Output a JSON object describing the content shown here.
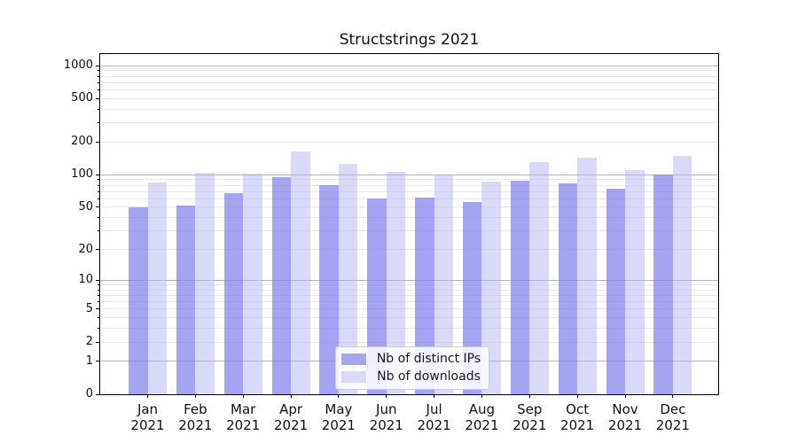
{
  "chart_data": {
    "type": "bar",
    "title": "Structstrings 2021",
    "categories": [
      "Jan",
      "Feb",
      "Mar",
      "Apr",
      "May",
      "Jun",
      "Jul",
      "Aug",
      "Sep",
      "Oct",
      "Nov",
      "Dec"
    ],
    "category_year": "2021",
    "series": [
      {
        "id": "distinct-ips",
        "name": "Nb of distinct IPs",
        "values": [
          50,
          52,
          68,
          95,
          80,
          61,
          62,
          56,
          89,
          83,
          75,
          100
        ],
        "fill": "rgba(126,126,235,0.7)",
        "legend_fill": "#a5a5f1"
      },
      {
        "id": "downloads",
        "name": "Nb of downloads",
        "values": [
          85,
          105,
          103,
          163,
          127,
          106,
          100,
          87,
          132,
          144,
          110,
          148
        ],
        "fill": "rgba(179,179,241,0.5)",
        "legend_fill": "#d9d9f8"
      }
    ],
    "yscale": "log1p",
    "ylim": [
      0,
      1280
    ],
    "yticks": [
      0,
      1,
      2,
      5,
      10,
      20,
      50,
      100,
      200,
      500,
      1000
    ],
    "grid": {
      "major": [
        1,
        10,
        100,
        1000
      ],
      "minor": [
        2,
        3,
        4,
        5,
        6,
        7,
        8,
        9,
        20,
        30,
        40,
        50,
        60,
        70,
        80,
        90,
        200,
        300,
        400,
        500,
        600,
        700,
        800,
        900
      ]
    },
    "colors": {
      "grid_major": "#b3b3b3",
      "grid_minor": "#e8e8e8",
      "axis": "#000000"
    },
    "legend_position": "lower center",
    "xlabel": "",
    "ylabel": ""
  }
}
